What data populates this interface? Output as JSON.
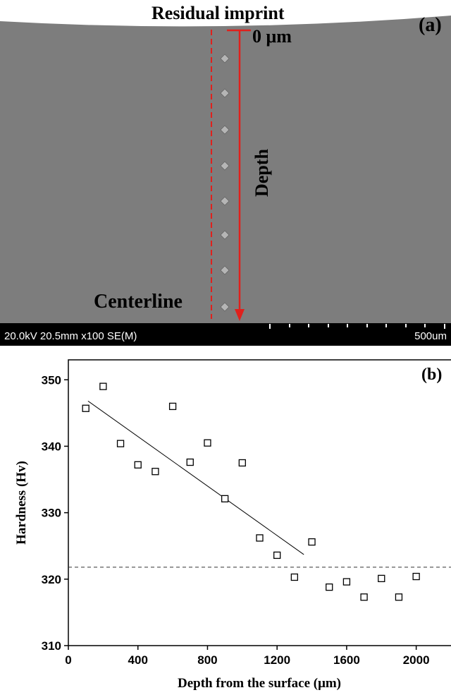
{
  "micrograph": {
    "label_top": "Residual imprint",
    "panel": "(a)",
    "zero_label": "0 μm",
    "depth_label": "Depth",
    "centerline_label": "Centerline",
    "info_bar": "20.0kV 20.5mm x100 SE(M)",
    "scale_label": "500um"
  },
  "chart_data": {
    "type": "scatter",
    "title": "(b)",
    "x_label": "Depth from the surface (μm)",
    "y_label": "Hardness (Hv)",
    "x": [
      100,
      200,
      300,
      400,
      500,
      600,
      700,
      800,
      900,
      1000,
      1100,
      1200,
      1300,
      1400,
      1500,
      1600,
      1700,
      1800,
      1900,
      2000
    ],
    "values": [
      345.7,
      349.0,
      340.4,
      337.2,
      336.2,
      346.0,
      337.6,
      340.5,
      332.1,
      337.5,
      326.2,
      323.6,
      320.3,
      325.6,
      318.8,
      319.6,
      317.3,
      320.1,
      317.3,
      320.4
    ],
    "color": "#000000",
    "fit_line": {
      "x": [
        113,
        1354
      ],
      "y": [
        346.8,
        323.7
      ]
    },
    "reference_line": 321.8,
    "xlim": [
      0,
      2200
    ],
    "ylim": [
      310,
      353
    ],
    "xticks": [
      0,
      400,
      800,
      1200,
      1600,
      2000
    ],
    "yticks": [
      310,
      320,
      330,
      340,
      350
    ]
  }
}
